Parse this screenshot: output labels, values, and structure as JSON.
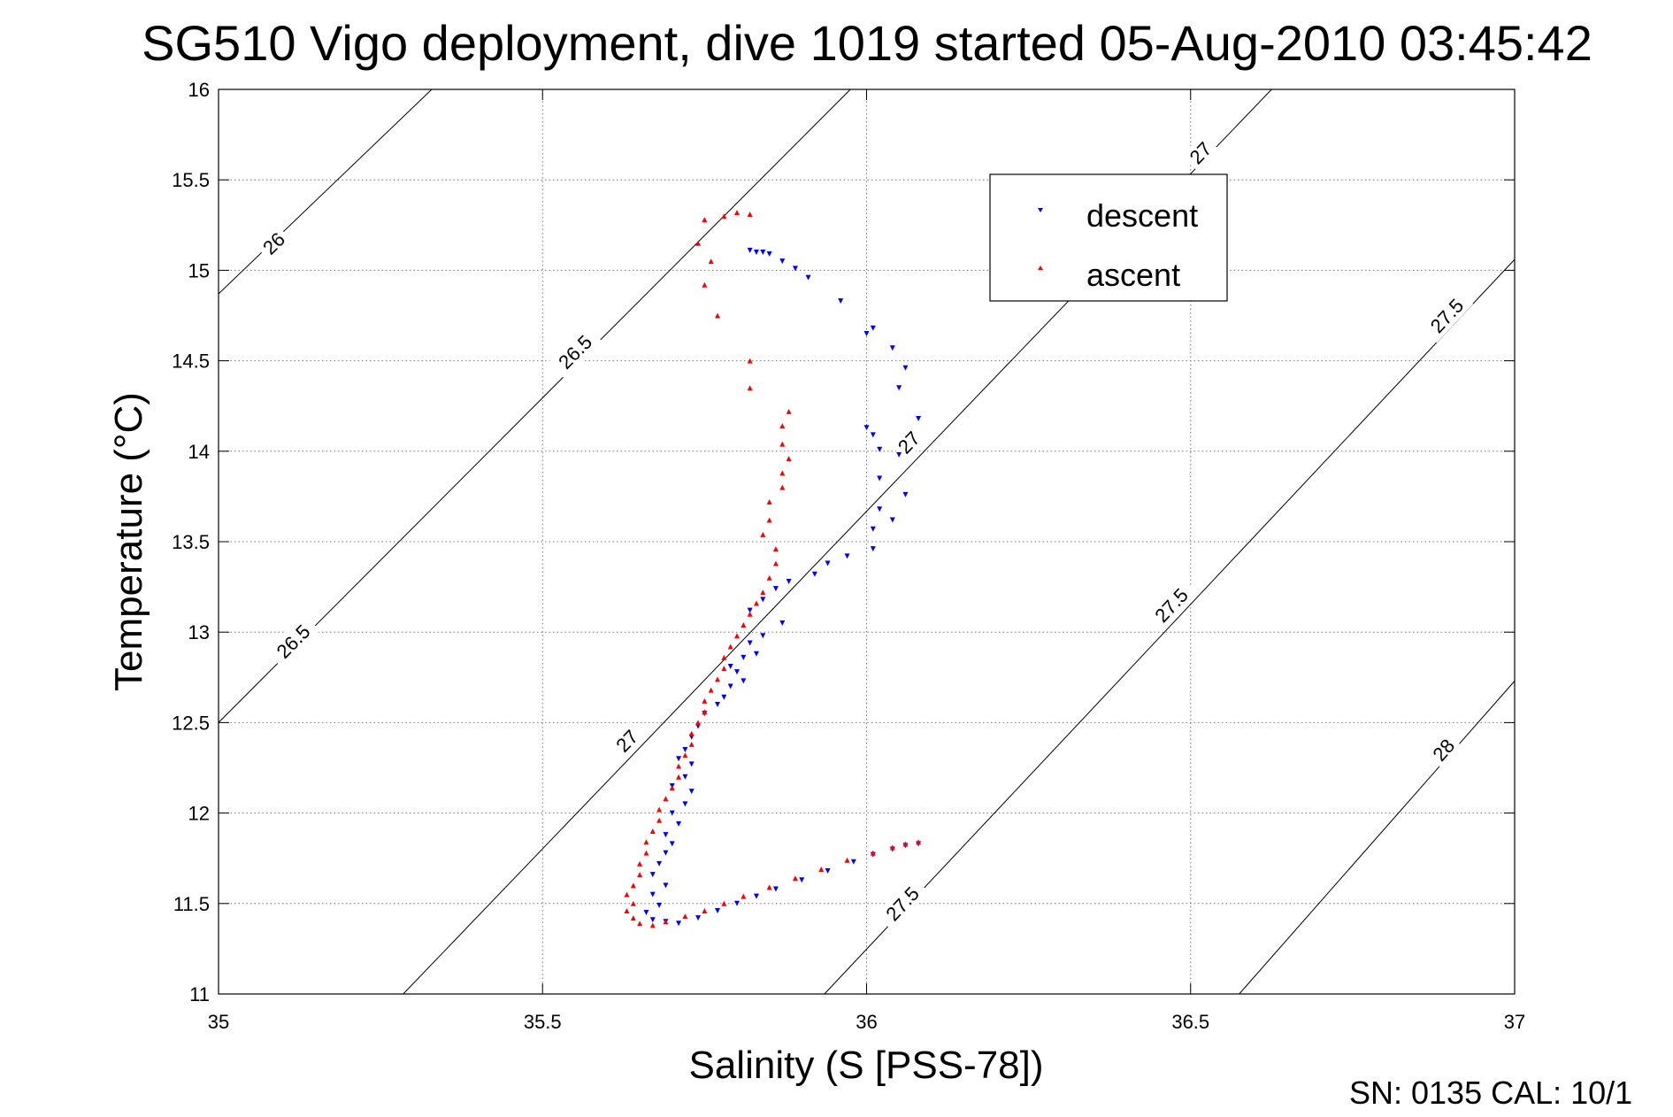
{
  "chart_data": {
    "type": "scatter",
    "title": "SG510 Vigo deployment, dive 1019 started 05-Aug-2010 03:45:42",
    "xlabel": "Salinity (S [PSS-78])",
    "ylabel": "Temperature (°C)",
    "xlim": [
      35,
      37
    ],
    "ylim": [
      11,
      16
    ],
    "x_ticks": [
      "35",
      "35.5",
      "36",
      "36.5",
      "37"
    ],
    "y_ticks": [
      "11",
      "11.5",
      "12",
      "12.5",
      "13",
      "13.5",
      "14",
      "14.5",
      "15",
      "15.5",
      "16"
    ],
    "grid": true,
    "legend_position": "top-right",
    "series": [
      {
        "name": "descent",
        "color": "#0000ff",
        "marker": "triangle-down",
        "points": [
          [
            35.82,
            15.11
          ],
          [
            35.83,
            15.1
          ],
          [
            35.84,
            15.1
          ],
          [
            35.85,
            15.09
          ],
          [
            35.87,
            15.05
          ],
          [
            35.89,
            15.01
          ],
          [
            35.91,
            14.96
          ],
          [
            35.96,
            14.83
          ],
          [
            36.01,
            14.68
          ],
          [
            36.0,
            14.65
          ],
          [
            36.04,
            14.57
          ],
          [
            36.06,
            14.46
          ],
          [
            36.05,
            14.35
          ],
          [
            36.08,
            14.18
          ],
          [
            36.0,
            14.13
          ],
          [
            36.01,
            14.09
          ],
          [
            36.02,
            14.01
          ],
          [
            36.05,
            13.98
          ],
          [
            36.02,
            13.85
          ],
          [
            36.06,
            13.76
          ],
          [
            36.02,
            13.68
          ],
          [
            36.04,
            13.62
          ],
          [
            36.01,
            13.57
          ],
          [
            36.01,
            13.46
          ],
          [
            35.97,
            13.42
          ],
          [
            35.94,
            13.38
          ],
          [
            35.92,
            13.32
          ],
          [
            35.88,
            13.28
          ],
          [
            35.86,
            13.24
          ],
          [
            35.84,
            13.18
          ],
          [
            35.82,
            13.12
          ],
          [
            35.87,
            13.05
          ],
          [
            35.84,
            12.98
          ],
          [
            35.82,
            12.94
          ],
          [
            35.83,
            12.88
          ],
          [
            35.81,
            12.86
          ],
          [
            35.79,
            12.81
          ],
          [
            35.8,
            12.78
          ],
          [
            35.81,
            12.73
          ],
          [
            35.79,
            12.7
          ],
          [
            35.78,
            12.64
          ],
          [
            35.77,
            12.6
          ],
          [
            35.75,
            12.55
          ],
          [
            35.74,
            12.48
          ],
          [
            35.73,
            12.42
          ],
          [
            35.72,
            12.35
          ],
          [
            35.71,
            12.3
          ],
          [
            35.73,
            12.27
          ],
          [
            35.72,
            12.2
          ],
          [
            35.7,
            12.15
          ],
          [
            35.73,
            12.12
          ],
          [
            35.72,
            12.05
          ],
          [
            35.7,
            12.0
          ],
          [
            35.71,
            11.94
          ],
          [
            35.69,
            11.88
          ],
          [
            35.7,
            11.83
          ],
          [
            35.69,
            11.78
          ],
          [
            35.68,
            11.72
          ],
          [
            35.67,
            11.66
          ],
          [
            35.69,
            11.6
          ],
          [
            35.67,
            11.55
          ],
          [
            35.68,
            11.49
          ],
          [
            35.66,
            11.45
          ],
          [
            35.67,
            11.41
          ],
          [
            35.69,
            11.4
          ],
          [
            35.71,
            11.39
          ],
          [
            35.74,
            11.42
          ],
          [
            35.77,
            11.46
          ],
          [
            35.8,
            11.5
          ],
          [
            35.83,
            11.54
          ],
          [
            35.86,
            11.58
          ],
          [
            35.9,
            11.63
          ],
          [
            35.94,
            11.68
          ],
          [
            35.98,
            11.73
          ],
          [
            36.01,
            11.77
          ],
          [
            36.04,
            11.8
          ],
          [
            36.06,
            11.82
          ],
          [
            36.08,
            11.83
          ]
        ]
      },
      {
        "name": "ascent",
        "color": "#ff0000",
        "marker": "triangle-up",
        "points": [
          [
            36.08,
            11.84
          ],
          [
            36.06,
            11.83
          ],
          [
            36.04,
            11.81
          ],
          [
            36.01,
            11.78
          ],
          [
            35.97,
            11.74
          ],
          [
            35.93,
            11.69
          ],
          [
            35.89,
            11.64
          ],
          [
            35.85,
            11.59
          ],
          [
            35.81,
            11.54
          ],
          [
            35.78,
            11.5
          ],
          [
            35.75,
            11.46
          ],
          [
            35.72,
            11.43
          ],
          [
            35.69,
            11.4
          ],
          [
            35.67,
            11.38
          ],
          [
            35.65,
            11.39
          ],
          [
            35.64,
            11.42
          ],
          [
            35.63,
            11.46
          ],
          [
            35.64,
            11.5
          ],
          [
            35.63,
            11.55
          ],
          [
            35.64,
            11.6
          ],
          [
            35.65,
            11.66
          ],
          [
            35.65,
            11.72
          ],
          [
            35.66,
            11.78
          ],
          [
            35.66,
            11.84
          ],
          [
            35.67,
            11.9
          ],
          [
            35.68,
            11.96
          ],
          [
            35.68,
            12.02
          ],
          [
            35.69,
            12.08
          ],
          [
            35.7,
            12.14
          ],
          [
            35.71,
            12.2
          ],
          [
            35.71,
            12.26
          ],
          [
            35.72,
            12.32
          ],
          [
            35.73,
            12.38
          ],
          [
            35.73,
            12.44
          ],
          [
            35.74,
            12.5
          ],
          [
            35.75,
            12.56
          ],
          [
            35.75,
            12.62
          ],
          [
            35.76,
            12.68
          ],
          [
            35.77,
            12.74
          ],
          [
            35.78,
            12.8
          ],
          [
            35.78,
            12.86
          ],
          [
            35.79,
            12.92
          ],
          [
            35.8,
            12.98
          ],
          [
            35.81,
            13.04
          ],
          [
            35.82,
            13.1
          ],
          [
            35.83,
            13.16
          ],
          [
            35.84,
            13.22
          ],
          [
            35.85,
            13.3
          ],
          [
            35.86,
            13.38
          ],
          [
            35.86,
            13.46
          ],
          [
            35.84,
            13.54
          ],
          [
            35.85,
            13.62
          ],
          [
            35.85,
            13.72
          ],
          [
            35.87,
            13.8
          ],
          [
            35.87,
            13.88
          ],
          [
            35.88,
            13.96
          ],
          [
            35.87,
            14.04
          ],
          [
            35.87,
            14.14
          ],
          [
            35.88,
            14.22
          ],
          [
            35.82,
            14.35
          ],
          [
            35.82,
            14.5
          ],
          [
            35.77,
            14.75
          ],
          [
            35.75,
            14.92
          ],
          [
            35.76,
            15.05
          ],
          [
            35.74,
            15.15
          ],
          [
            35.75,
            15.28
          ],
          [
            35.78,
            15.3
          ],
          [
            35.8,
            15.32
          ],
          [
            35.82,
            15.31
          ]
        ]
      }
    ],
    "contours": [
      {
        "sigma": "26",
        "points": [
          [
            35.0,
            14.87
          ],
          [
            35.329,
            16.0
          ]
        ],
        "labels": [
          {
            "text": "26",
            "at": [
              35.085,
              15.15
            ]
          }
        ]
      },
      {
        "sigma": "26.5",
        "points": [
          [
            35.0,
            12.5
          ],
          [
            35.975,
            16.0
          ]
        ],
        "labels": [
          {
            "text": "26.5",
            "at": [
              35.115,
              12.95
            ]
          },
          {
            "text": "26.5",
            "at": [
              35.55,
              14.55
            ]
          }
        ]
      },
      {
        "sigma": "27",
        "points": [
          [
            35.285,
            11.0
          ],
          [
            36.625,
            16.0
          ]
        ],
        "labels": [
          {
            "text": "27",
            "at": [
              35.63,
              12.4
            ]
          },
          {
            "text": "27",
            "at": [
              36.065,
              14.05
            ]
          },
          {
            "text": "27",
            "at": [
              36.515,
              15.65
            ]
          }
        ]
      },
      {
        "sigma": "27.5",
        "points": [
          [
            35.935,
            11.0
          ],
          [
            37.0,
            15.06
          ]
        ],
        "labels": [
          {
            "text": "27.5",
            "at": [
              36.055,
              11.5
            ]
          },
          {
            "text": "27.5",
            "at": [
              36.47,
              13.15
            ]
          },
          {
            "text": "27.5",
            "at": [
              36.895,
              14.75
            ]
          }
        ]
      },
      {
        "sigma": "28",
        "points": [
          [
            36.575,
            11.0
          ],
          [
            37.0,
            12.73
          ]
        ],
        "labels": [
          {
            "text": "28",
            "at": [
              36.89,
              12.35
            ]
          }
        ]
      }
    ]
  },
  "footer_text": "SN: 0135  CAL: 10/1"
}
